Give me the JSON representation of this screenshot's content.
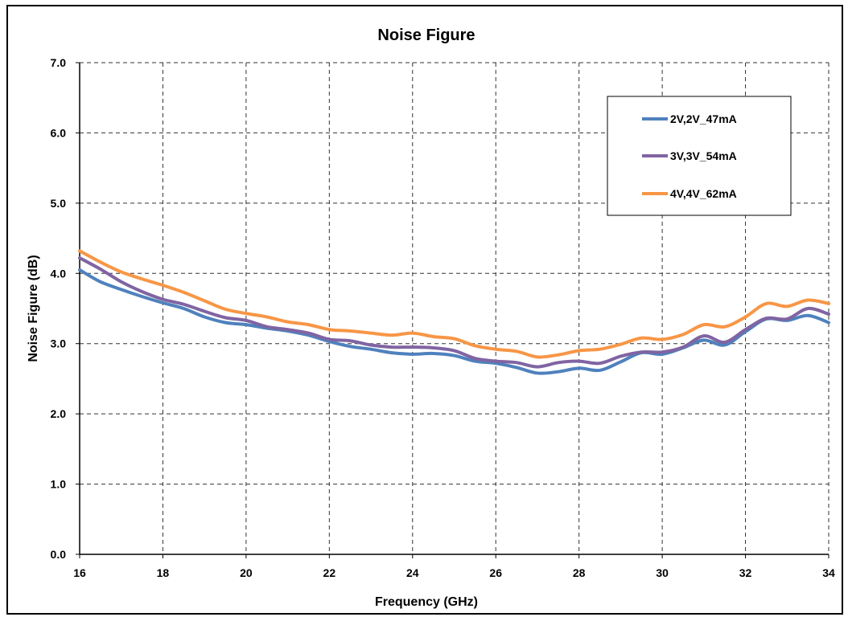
{
  "chart_data": {
    "type": "line",
    "title": "Noise Figure",
    "xlabel": "Frequency (GHz)",
    "ylabel": "Noise Figure (dB)",
    "xlim": [
      16,
      34
    ],
    "ylim": [
      0.0,
      7.0
    ],
    "xticks": [
      "16",
      "18",
      "20",
      "22",
      "24",
      "26",
      "28",
      "30",
      "32",
      "34"
    ],
    "yticks": [
      "0.0",
      "1.0",
      "2.0",
      "3.0",
      "4.0",
      "5.0",
      "6.0",
      "7.0"
    ],
    "grid": true,
    "legend_position": "top-right",
    "x": [
      16,
      16.5,
      17,
      17.5,
      18,
      18.5,
      19,
      19.5,
      20,
      20.5,
      21,
      21.5,
      22,
      22.5,
      23,
      23.5,
      24,
      24.5,
      25,
      25.5,
      26,
      26.5,
      27,
      27.5,
      28,
      28.5,
      29,
      29.5,
      30,
      30.5,
      31,
      31.5,
      32,
      32.5,
      33,
      33.5,
      34
    ],
    "series": [
      {
        "name": "2V,2V_47mA",
        "color": "#4f81bd",
        "values": [
          4.05,
          3.88,
          3.77,
          3.67,
          3.58,
          3.5,
          3.38,
          3.3,
          3.27,
          3.22,
          3.18,
          3.12,
          3.03,
          2.96,
          2.92,
          2.87,
          2.85,
          2.86,
          2.83,
          2.75,
          2.72,
          2.66,
          2.58,
          2.6,
          2.65,
          2.62,
          2.74,
          2.87,
          2.85,
          2.94,
          3.05,
          2.98,
          3.17,
          3.35,
          3.33,
          3.4,
          3.3
        ]
      },
      {
        "name": "3V,3V_54mA",
        "color": "#8064a2",
        "values": [
          4.22,
          4.06,
          3.88,
          3.74,
          3.63,
          3.56,
          3.46,
          3.37,
          3.33,
          3.24,
          3.2,
          3.15,
          3.06,
          3.04,
          2.98,
          2.95,
          2.95,
          2.94,
          2.9,
          2.79,
          2.75,
          2.73,
          2.67,
          2.73,
          2.75,
          2.72,
          2.82,
          2.88,
          2.88,
          2.95,
          3.11,
          3.02,
          3.2,
          3.36,
          3.35,
          3.5,
          3.42
        ]
      },
      {
        "name": "4V,4V_62mA",
        "color": "#f79646",
        "values": [
          4.32,
          4.16,
          4.02,
          3.92,
          3.83,
          3.73,
          3.61,
          3.49,
          3.43,
          3.38,
          3.31,
          3.27,
          3.2,
          3.18,
          3.15,
          3.12,
          3.15,
          3.1,
          3.07,
          2.97,
          2.92,
          2.89,
          2.81,
          2.84,
          2.9,
          2.92,
          2.99,
          3.08,
          3.06,
          3.13,
          3.27,
          3.24,
          3.38,
          3.57,
          3.53,
          3.62,
          3.57
        ]
      }
    ]
  }
}
